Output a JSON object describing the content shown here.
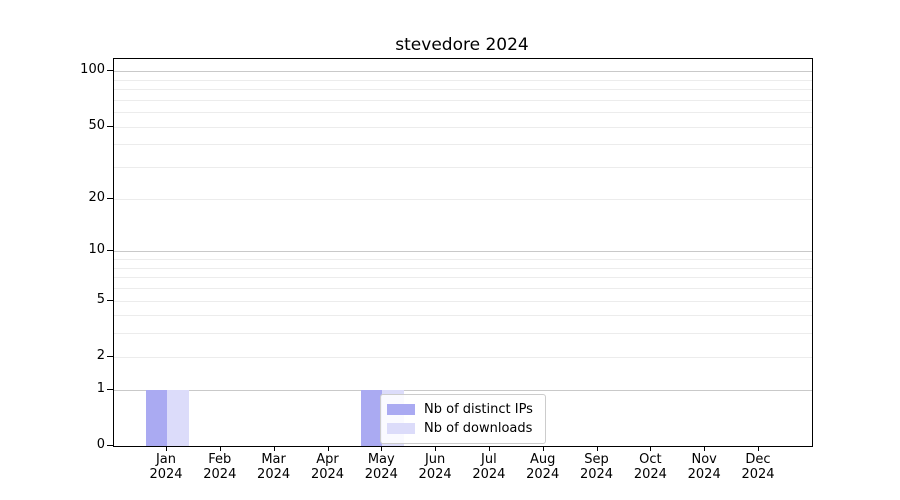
{
  "title": "stevedore 2024",
  "chart_data": {
    "type": "bar",
    "title": "stevedore 2024",
    "categories": [
      {
        "month": "Jan",
        "year": "2024"
      },
      {
        "month": "Feb",
        "year": "2024"
      },
      {
        "month": "Mar",
        "year": "2024"
      },
      {
        "month": "Apr",
        "year": "2024"
      },
      {
        "month": "May",
        "year": "2024"
      },
      {
        "month": "Jun",
        "year": "2024"
      },
      {
        "month": "Jul",
        "year": "2024"
      },
      {
        "month": "Aug",
        "year": "2024"
      },
      {
        "month": "Sep",
        "year": "2024"
      },
      {
        "month": "Oct",
        "year": "2024"
      },
      {
        "month": "Nov",
        "year": "2024"
      },
      {
        "month": "Dec",
        "year": "2024"
      }
    ],
    "series": [
      {
        "name": "Nb of distinct IPs",
        "color": "#aaaaf2",
        "values": [
          1,
          0,
          0,
          0,
          1,
          0,
          0,
          0,
          0,
          0,
          0,
          0
        ]
      },
      {
        "name": "Nb of downloads",
        "color": "#dcdcfa",
        "values": [
          1,
          0,
          0,
          0,
          1,
          0,
          0,
          0,
          0,
          0,
          0,
          0
        ]
      }
    ],
    "y_scale": "log1p",
    "ylim": [
      0,
      116
    ],
    "y_tick_labels": [
      0,
      1,
      2,
      5,
      10,
      20,
      50,
      100
    ],
    "y_major_gridlines": [
      1,
      10,
      100
    ],
    "y_minor_gridlines": [
      2,
      3,
      4,
      5,
      6,
      7,
      8,
      9,
      20,
      30,
      40,
      50,
      60,
      70,
      80,
      90
    ],
    "grid": true,
    "legend_position": "inside-lower-center-left"
  },
  "colors": {
    "bar_distinct_ips": "#aaaaf2",
    "bar_downloads": "#dcdcfa",
    "grid_major": "#c9c9c9",
    "grid_minor": "#ececec",
    "spine": "#000000",
    "text": "#000000",
    "legend_border": "#cccccc"
  }
}
